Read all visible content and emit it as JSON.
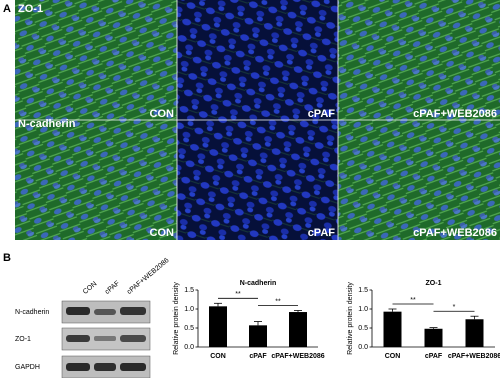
{
  "panel_a": {
    "label": "A",
    "rows": [
      "ZO-1",
      "N-cadherin"
    ],
    "conditions": [
      "CON",
      "cPAF",
      "cPAF+WEB2086"
    ]
  },
  "panel_b": {
    "label": "B",
    "blot": {
      "lanes": [
        "CON",
        "cPAF",
        "cPAF+WEB2086"
      ],
      "proteins": [
        "N-cadherin",
        "ZO-1",
        "GAPDH"
      ]
    }
  },
  "chart_data": [
    {
      "type": "bar",
      "title": "N-cadherin",
      "y_label": "Relative protein density",
      "categories": [
        "CON",
        "cPAF",
        "cPAF+WEB2086"
      ],
      "values": [
        1.07,
        0.57,
        0.92
      ],
      "errors": [
        0.08,
        0.1,
        0.04
      ],
      "color": "#000000",
      "ylim": [
        0,
        1.5
      ],
      "yticks": [
        {
          "value": 0,
          "label": "0.0"
        },
        0.5,
        {
          "value": 1,
          "label": "1.0"
        },
        1.5
      ],
      "annotations": [
        {
          "text": "**",
          "between": [
            "CON",
            "cPAF"
          ]
        },
        {
          "text": "**",
          "between": [
            "cPAF",
            "cPAF+WEB2086"
          ]
        }
      ]
    },
    {
      "type": "bar",
      "title": "ZO-1",
      "y_label": "Relative protein density",
      "categories": [
        "CON",
        "cPAF",
        "cPAF+WEB2086"
      ],
      "values": [
        0.93,
        0.48,
        0.73
      ],
      "errors": [
        0.07,
        0.03,
        0.08
      ],
      "color": "#000000",
      "ylim": [
        0,
        1.5
      ],
      "yticks": [
        {
          "value": 0,
          "label": "0.0"
        },
        0.5,
        {
          "value": 1,
          "label": "1.0"
        },
        1.5
      ],
      "annotations": [
        {
          "text": "**",
          "between": [
            "CON",
            "cPAF"
          ]
        },
        {
          "text": "*",
          "between": [
            "cPAF",
            "cPAF+WEB2086"
          ]
        }
      ]
    }
  ]
}
